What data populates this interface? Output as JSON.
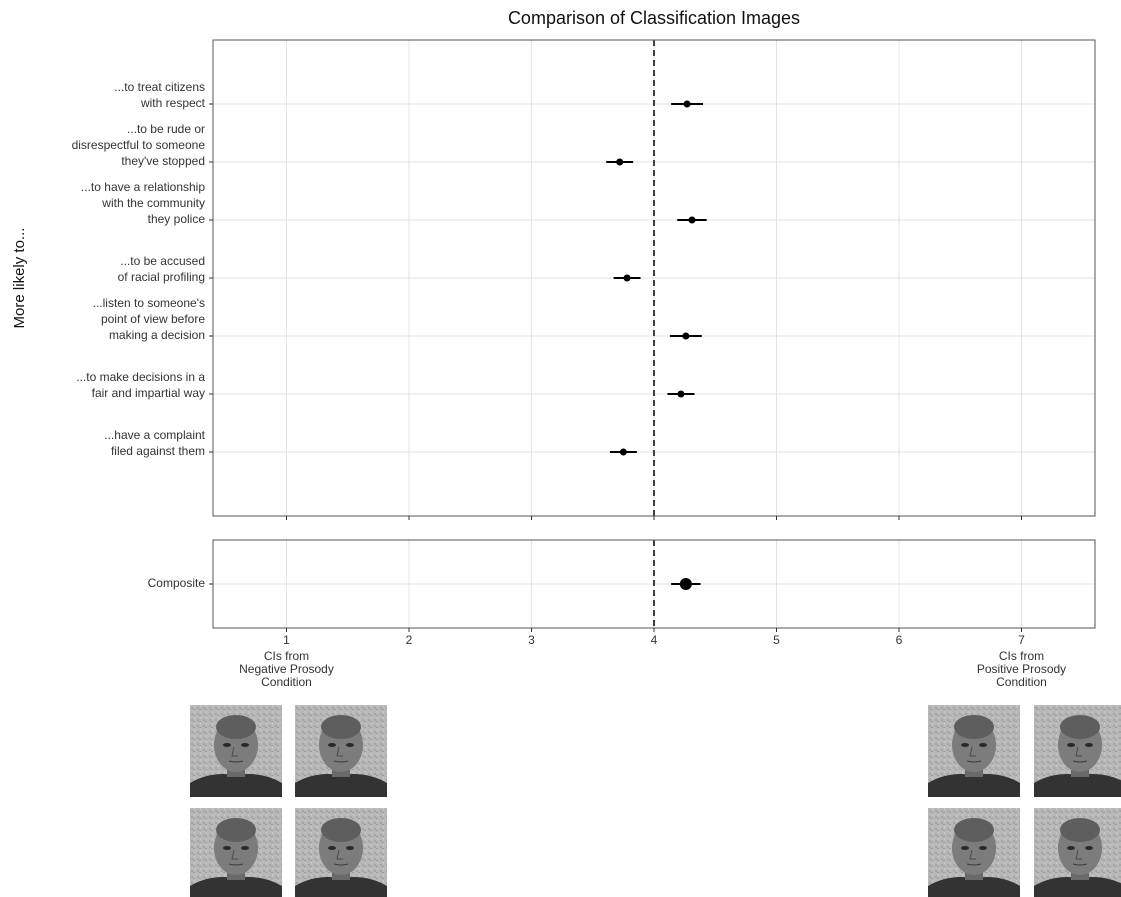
{
  "chart_data": {
    "type": "dotplot",
    "title": "Comparison of Classification Images",
    "y_label": "More likely to...",
    "xlim": [
      0.4,
      7.6
    ],
    "xticks": [
      1,
      2,
      3,
      4,
      5,
      6,
      7
    ],
    "reference_line": 4,
    "grid": true,
    "color": "#000000",
    "panels": [
      {
        "categories": [
          [
            "...to treat citizens",
            "with respect"
          ],
          [
            "...to be rude or",
            "disrespectful to someone",
            "they've stopped"
          ],
          [
            "...to have a relationship",
            "with the community",
            "they police"
          ],
          [
            "...to be accused",
            "of racial profiling"
          ],
          [
            "...listen to someone's",
            "point of view before",
            "making a decision"
          ],
          [
            "...to make decisions in a",
            "fair and impartial way"
          ],
          [
            "...have a complaint",
            "filed against them"
          ]
        ],
        "values": [
          4.27,
          3.72,
          4.31,
          3.78,
          4.26,
          4.22,
          3.75
        ],
        "errors": [
          0.13,
          0.11,
          0.12,
          0.11,
          0.13,
          0.11,
          0.11
        ]
      },
      {
        "categories": [
          [
            "Composite"
          ]
        ],
        "values": [
          4.26
        ],
        "errors": [
          0.12
        ]
      }
    ],
    "annotations": [
      [
        "CIs from",
        "Negative Prosody",
        "Condition"
      ],
      [
        "CIs from",
        "Positive Prosody",
        "Condition"
      ]
    ]
  }
}
